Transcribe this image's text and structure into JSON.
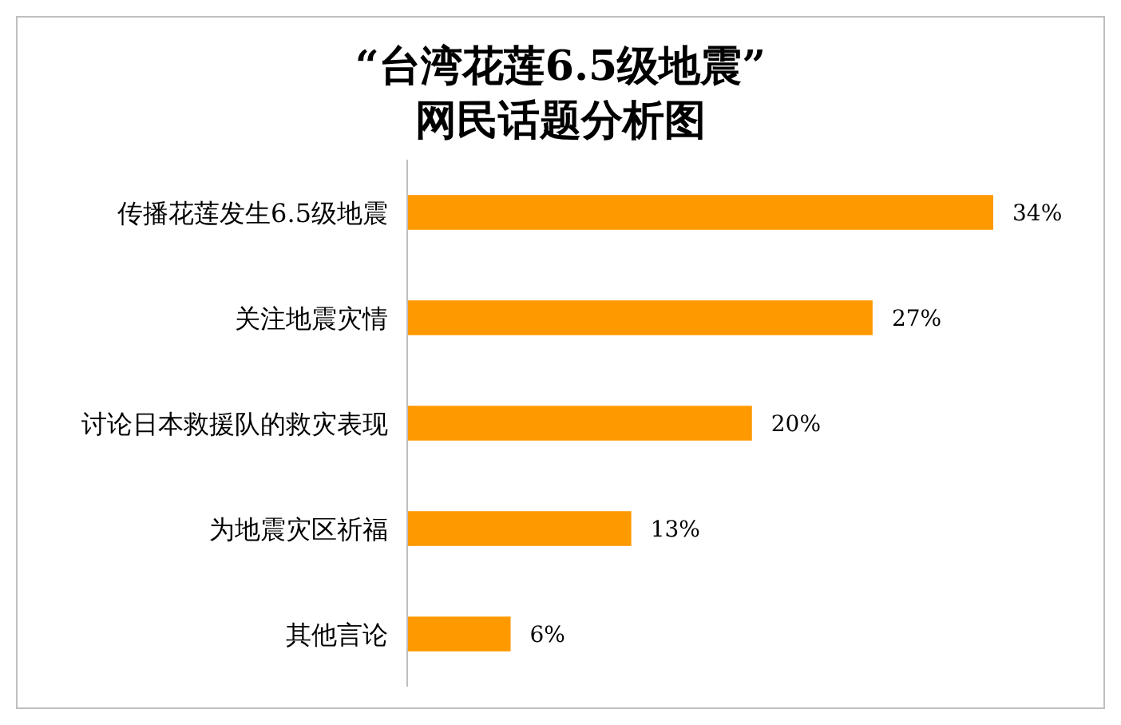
{
  "chart_data": {
    "type": "bar",
    "orientation": "horizontal",
    "title": "“台湾花莲6.5级地震”\n网民话题分析图",
    "categories": [
      "传播花莲发生6.5级地震",
      "关注地震灾情",
      "讨论日本救援队的救灾表现",
      "为地震灾区祈福",
      "其他言论"
    ],
    "values": [
      34,
      27,
      20,
      13,
      6
    ],
    "value_labels": [
      "34%",
      "27%",
      "20%",
      "13%",
      "6%"
    ],
    "color": "#ff9900"
  }
}
